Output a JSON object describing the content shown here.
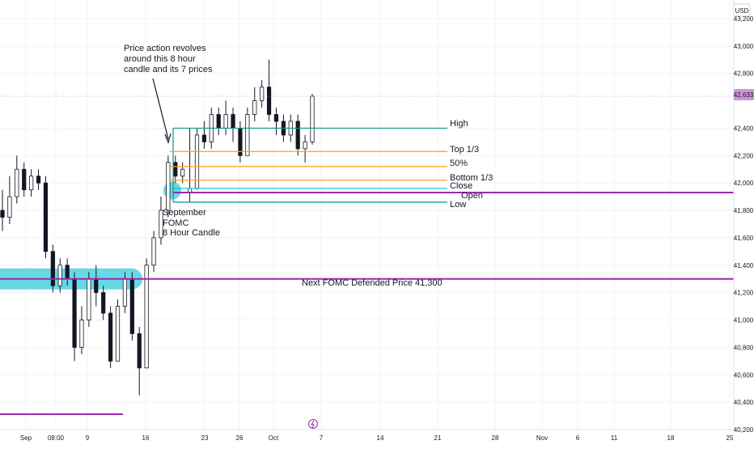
{
  "header": {
    "currency": "USD"
  },
  "price_scale": {
    "ticks": [
      "43,200",
      "43,000",
      "42,800",
      "42,400",
      "42,200",
      "42,000",
      "41,800",
      "41,600",
      "41,400",
      "41,200",
      "41,000",
      "40,800",
      "40,600",
      "40,400",
      "40,200"
    ],
    "current_price_badge": "42,633"
  },
  "time_axis": {
    "labels": [
      "Sep",
      "08:00",
      "9",
      "16",
      "23",
      "26",
      "Oct",
      "7",
      "14",
      "21",
      "28",
      "Nov",
      "6",
      "11",
      "18",
      "25"
    ]
  },
  "annotations": {
    "note_line1": "Price action revolves",
    "note_line2": "around this 8 hour",
    "note_line3": "candle and its 7 prices",
    "candle_line1": "September",
    "candle_line2": "FOMC",
    "candle_line3": "8 Hour Candle",
    "defended_label": "Next FOMC Defended Price 41,300",
    "levels": {
      "high": "High",
      "top_third": "Top 1/3",
      "fifty": "50%",
      "bottom_third": "Bottom 1/3",
      "close": "Close",
      "open": "Open",
      "low": "Low"
    }
  },
  "colors": {
    "teal": "#089981",
    "orange": "#f7a21b",
    "purple": "#9c27b0",
    "cyan_highlight": "#4fd1e0",
    "price_badge": "#ce93d8"
  },
  "chart_data": {
    "type": "candlestick",
    "y_unit": "USD",
    "ylim": [
      40200,
      43300
    ],
    "levels": {
      "high": 42400,
      "top_third": 42230,
      "fifty": 42120,
      "bottom_third": 42020,
      "close": 41960,
      "open": 41930,
      "low": 41860,
      "next_fomc_defended": 41300
    },
    "last_price": 42633,
    "candles": [
      [
        41800,
        41750,
        41950,
        41650
      ],
      [
        41750,
        41900,
        42050,
        41700
      ],
      [
        41900,
        42100,
        42200,
        41850
      ],
      [
        42100,
        41950,
        42150,
        41900
      ],
      [
        41950,
        42050,
        42100,
        41900
      ],
      [
        42050,
        42000,
        42100,
        41950
      ],
      [
        42000,
        41500,
        42050,
        41450
      ],
      [
        41500,
        41250,
        41550,
        41200
      ],
      [
        41250,
        41400,
        41450,
        41200
      ],
      [
        41400,
        41300,
        41450,
        41250
      ],
      [
        41300,
        40800,
        41350,
        40700
      ],
      [
        40800,
        41000,
        41100,
        40750
      ],
      [
        41000,
        41300,
        41350,
        40950
      ],
      [
        41300,
        41200,
        41400,
        41100
      ],
      [
        41200,
        41050,
        41250,
        41000
      ],
      [
        41050,
        40700,
        41100,
        40650
      ],
      [
        40700,
        41100,
        41150,
        40700
      ],
      [
        41100,
        41300,
        41350,
        41050
      ],
      [
        41300,
        40900,
        41350,
        40850
      ],
      [
        40900,
        40650,
        40950,
        40450
      ],
      [
        40650,
        41400,
        41450,
        40650
      ],
      [
        41400,
        41600,
        41650,
        41350
      ],
      [
        41600,
        41800,
        41900,
        41550
      ],
      [
        41800,
        42150,
        42200,
        41750
      ],
      [
        42150,
        42050,
        42200,
        42000
      ],
      [
        42050,
        42100,
        42150,
        42000
      ],
      [
        41930,
        41960,
        42400,
        41860
      ],
      [
        41960,
        42350,
        42400,
        41950
      ],
      [
        42350,
        42300,
        42450,
        42250
      ],
      [
        42300,
        42500,
        42550,
        42250
      ],
      [
        42500,
        42400,
        42550,
        42350
      ],
      [
        42400,
        42500,
        42600,
        42350
      ],
      [
        42500,
        42400,
        42550,
        42300
      ],
      [
        42400,
        42200,
        42450,
        42150
      ],
      [
        42200,
        42500,
        42550,
        42200
      ],
      [
        42500,
        42600,
        42700,
        42450
      ],
      [
        42600,
        42700,
        42750,
        42550
      ],
      [
        42700,
        42500,
        42900,
        42450
      ],
      [
        42500,
        42450,
        42550,
        42350
      ],
      [
        42450,
        42350,
        42500,
        42300
      ],
      [
        42350,
        42450,
        42500,
        42300
      ],
      [
        42450,
        42250,
        42500,
        42200
      ],
      [
        42250,
        42300,
        42350,
        42150
      ],
      [
        42300,
        42633,
        42650,
        42280
      ]
    ]
  }
}
